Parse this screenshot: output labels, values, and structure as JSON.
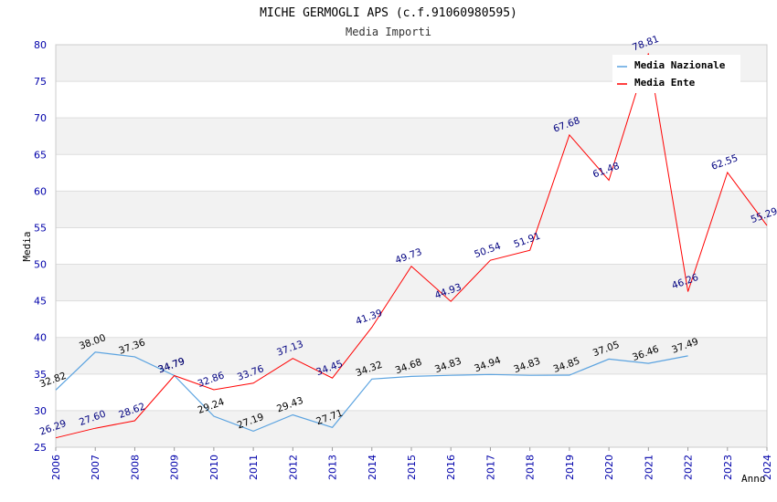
{
  "chart_data": {
    "type": "line",
    "title": "MICHE GERMOGLI APS (c.f.91060980595)",
    "subtitle": "Media Importi",
    "xlabel": "Anno",
    "ylabel": "Media",
    "ylim": [
      25,
      80
    ],
    "yticks": [
      "25",
      "30",
      "35",
      "40",
      "45",
      "50",
      "55",
      "60",
      "65",
      "70",
      "75",
      "80"
    ],
    "x": [
      "2006",
      "2007",
      "2008",
      "2009",
      "2010",
      "2011",
      "2012",
      "2013",
      "2014",
      "2015",
      "2016",
      "2017",
      "2018",
      "2019",
      "2020",
      "2021",
      "2022",
      "2023",
      "2024"
    ],
    "grid": "horizontal bands",
    "legend_position": "top-right",
    "series": [
      {
        "name": "Media Nazionale",
        "color": "#5ba3e0",
        "label_color": "#000000",
        "values": [
          32.82,
          38.0,
          37.36,
          34.79,
          29.24,
          27.19,
          29.43,
          27.71,
          34.32,
          34.68,
          34.83,
          34.94,
          34.83,
          34.85,
          37.05,
          36.46,
          37.49,
          null,
          null
        ],
        "labels": [
          "32.82",
          "38.00",
          "37.36",
          "34.79",
          "29.24",
          "27.19",
          "29.43",
          "27.71",
          "34.32",
          "34.68",
          "34.83",
          "34.94",
          "34.83",
          "34.85",
          "37.05",
          "36.46",
          "37.49",
          "",
          ""
        ]
      },
      {
        "name": "Media Ente",
        "color": "#ff0000",
        "label_color": "#000080",
        "values": [
          26.29,
          27.6,
          28.62,
          34.79,
          32.86,
          33.76,
          37.13,
          34.45,
          41.39,
          49.73,
          44.93,
          50.54,
          51.91,
          67.68,
          61.48,
          78.81,
          46.26,
          62.55,
          55.29
        ],
        "labels": [
          "26.29",
          "27.60",
          "28.62",
          "34.79",
          "32.86",
          "33.76",
          "37.13",
          "34.45",
          "41.39",
          "49.73",
          "44.93",
          "50.54",
          "51.91",
          "67.68",
          "61.48",
          "78.81",
          "46.26",
          "62.55",
          "55.29"
        ]
      }
    ]
  }
}
